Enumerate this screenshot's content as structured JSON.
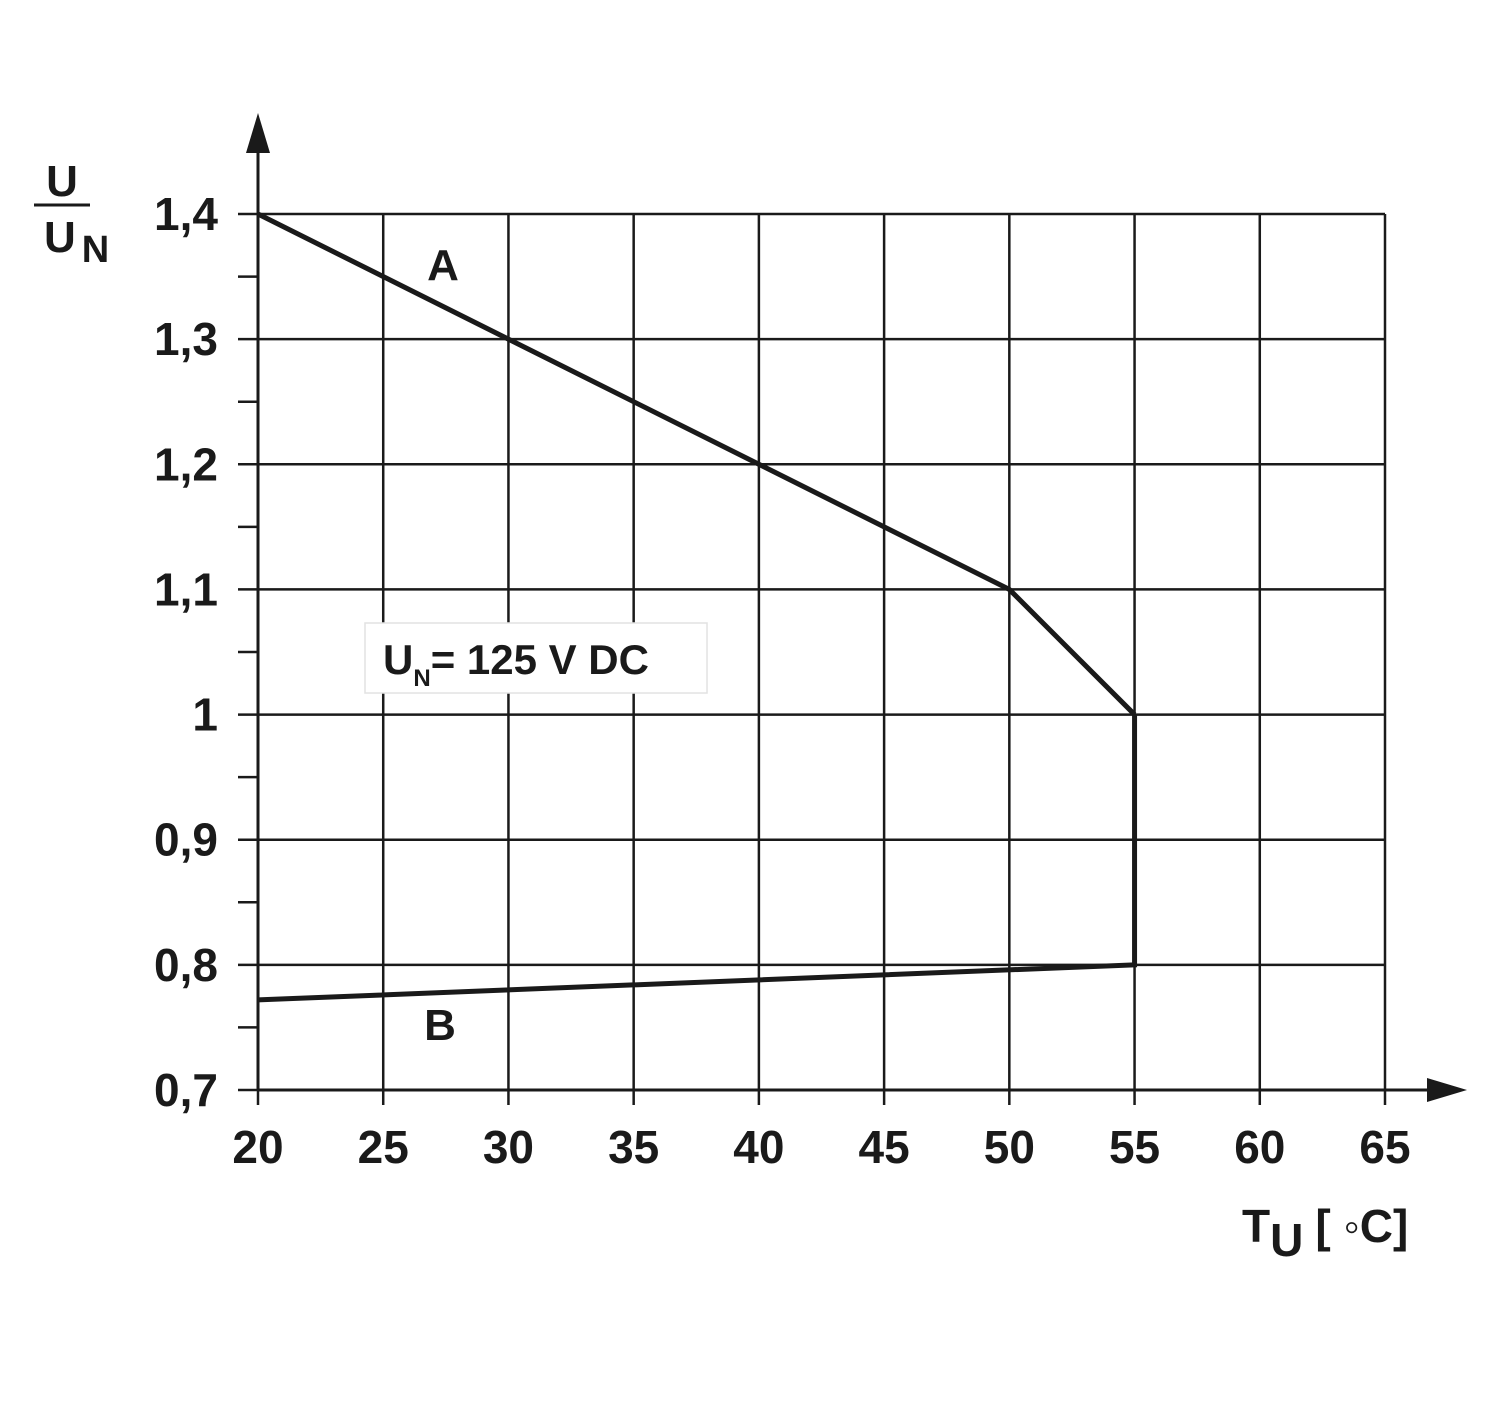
{
  "chart_data": {
    "type": "line",
    "series": [
      {
        "name": "A",
        "color": "#1a1a1a",
        "x": [
          20,
          50,
          55
        ],
        "values": [
          1.4,
          1.1,
          1
        ]
      },
      {
        "name": "B",
        "color": "#1a1a1a",
        "x": [
          20,
          55,
          55
        ],
        "values": [
          0.772,
          0.8,
          1
        ]
      }
    ],
    "xlim": [
      20,
      65
    ],
    "xticks": [
      20,
      25,
      30,
      35,
      40,
      45,
      50,
      55,
      60,
      65
    ],
    "ylim": [
      0.7,
      1.4
    ],
    "yticks": [
      {
        "value": 0.7,
        "label": "0,7"
      },
      {
        "value": 0.8,
        "label": "0,8"
      },
      {
        "value": 0.9,
        "label": "0,9"
      },
      1,
      {
        "value": 1.1,
        "label": "1,1"
      },
      {
        "value": 1.2,
        "label": "1,2"
      },
      {
        "value": 1.3,
        "label": "1,3"
      },
      {
        "value": 1.4,
        "label": "1,4"
      }
    ],
    "y_minor_ticks": [
      0.75,
      0.85,
      0.95,
      1.05,
      1.15,
      1.25,
      1.35
    ],
    "grid": true,
    "y_label": {
      "numerator": "U",
      "denominator": "U",
      "denominator_subscript": "N"
    },
    "x_label": {
      "text": "T",
      "subscript": "U",
      "unit": "[ ◦C]"
    },
    "annotation": {
      "text": "U",
      "subscript": "N",
      "rest": "= 125 V DC"
    }
  }
}
